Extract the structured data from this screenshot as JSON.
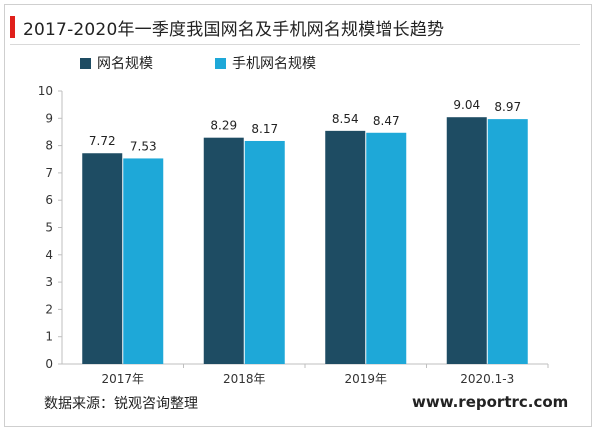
{
  "title": "2017-2020年一季度我国网名及手机网名规模增长趋势",
  "legend": {
    "series0": "网名规模",
    "series1": "手机网名规模"
  },
  "source": "数据来源：锐观咨询整理",
  "website": "www.reportrc.com",
  "colors": {
    "accent": "#e0201b",
    "series0": "#1e4c63",
    "series1": "#1ea8d8"
  },
  "chart_data": {
    "type": "bar",
    "categories": [
      "2017年",
      "2018年",
      "2019年",
      "2020.1-3"
    ],
    "series": [
      {
        "name": "网名规模",
        "values": [
          7.72,
          8.29,
          8.54,
          9.04
        ]
      },
      {
        "name": "手机网名规模",
        "values": [
          7.53,
          8.17,
          8.47,
          8.97
        ]
      }
    ],
    "ylim": [
      0,
      10
    ],
    "yticks": [
      0,
      1,
      2,
      3,
      4,
      5,
      6,
      7,
      8,
      9,
      10
    ],
    "grid": false,
    "legend_position": "top-left"
  }
}
